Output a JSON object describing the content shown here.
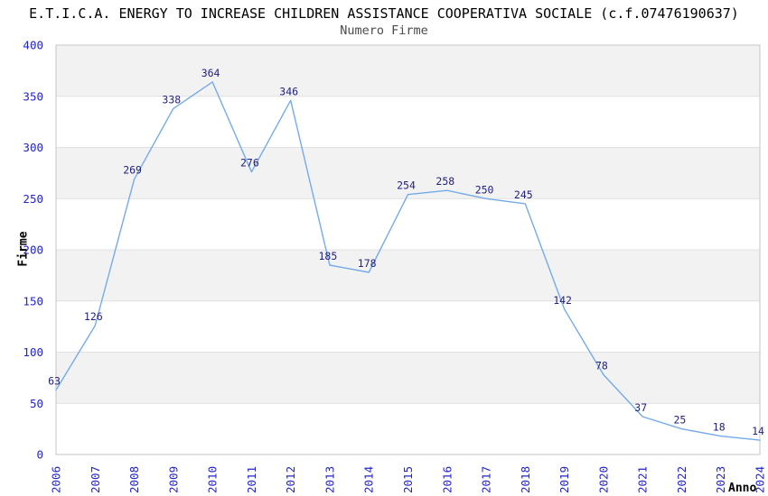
{
  "chart_data": {
    "type": "line",
    "title": "E.T.I.C.A. ENERGY TO INCREASE CHILDREN ASSISTANCE COOPERATIVA SOCIALE (c.f.07476190637)",
    "subtitle": "Numero Firme",
    "xlabel": "Anno",
    "ylabel": "Firme",
    "categories": [
      "2006",
      "2007",
      "2008",
      "2009",
      "2010",
      "2011",
      "2012",
      "2013",
      "2014",
      "2015",
      "2016",
      "2017",
      "2018",
      "2019",
      "2020",
      "2021",
      "2022",
      "2023",
      "2024"
    ],
    "values": [
      63,
      126,
      269,
      338,
      364,
      276,
      346,
      185,
      178,
      254,
      258,
      250,
      245,
      142,
      78,
      37,
      25,
      18,
      14
    ],
    "ylim": [
      0,
      400
    ],
    "ytick_step": 50,
    "grid": "horizontal-bands-alternating",
    "legend": "none",
    "colors": {
      "line": "#74abe8",
      "data_label": "#222280",
      "tick_label": "#2323cc",
      "band": "#f2f2f2",
      "grid_line": "#e0e0e0",
      "plot_border": "#c6c6c6",
      "title": "#000000",
      "subtitle": "#4a4a4a",
      "axis_title": "#000000"
    }
  }
}
